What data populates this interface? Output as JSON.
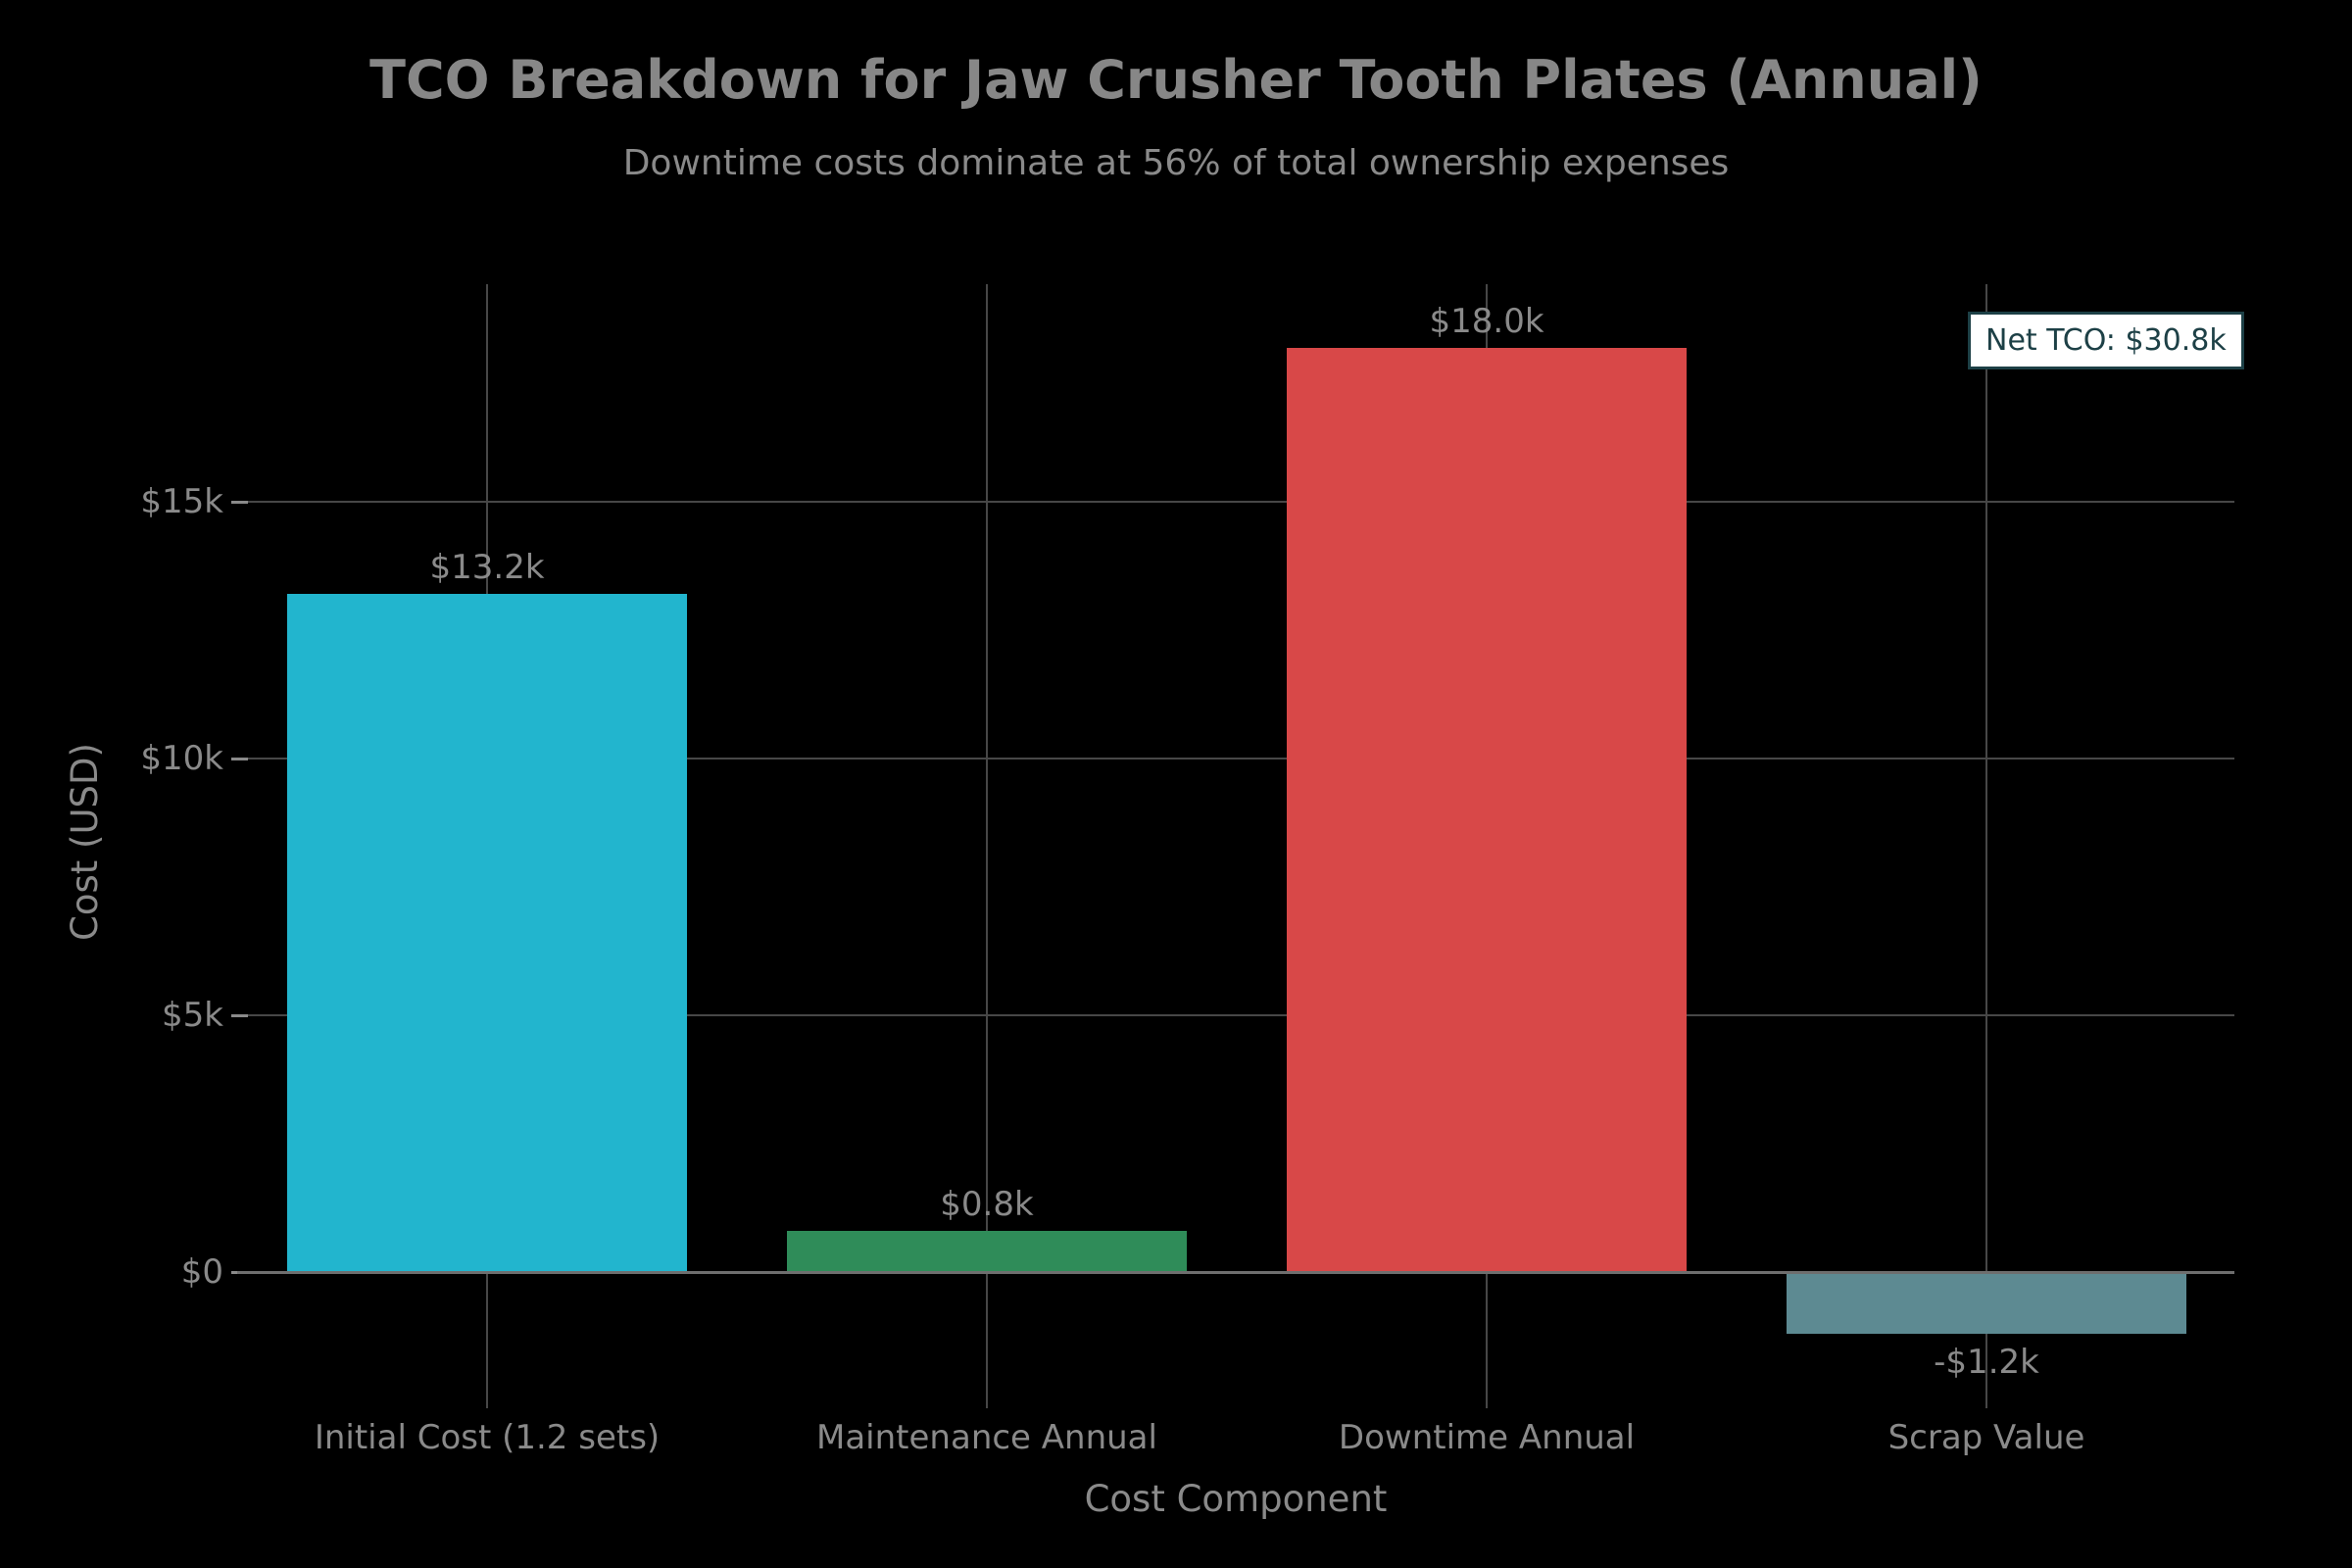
{
  "figure": {
    "title": "TCO Breakdown for Jaw Crusher Tooth Plates (Annual)",
    "subtitle": "Downtime costs dominate at 56% of total ownership expenses",
    "background_color": "#000000",
    "text_color": "#8a8a8a",
    "grid_color": "#474747",
    "zero_line_color": "#6e6e6e"
  },
  "chart_data": {
    "type": "bar",
    "title": "TCO Breakdown for Jaw Crusher Tooth Plates (Annual)",
    "subtitle": "Downtime costs dominate at 56% of total ownership expenses",
    "xlabel": "Cost Component",
    "ylabel": "Cost (USD)",
    "categories": [
      "Initial Cost (1.2 sets)",
      "Maintenance Annual",
      "Downtime Annual",
      "Scrap Value"
    ],
    "values": [
      13200,
      800,
      18000,
      -1200
    ],
    "bar_labels": [
      "$13.2k",
      "$0.8k",
      "$18.0k",
      "-$1.2k"
    ],
    "bar_colors": [
      "#22b5ce",
      "#2f8c59",
      "#d84848",
      "#5d8a92"
    ],
    "yticks": [
      {
        "value": 0,
        "label": "$0"
      },
      {
        "value": 5000,
        "label": "$5k"
      },
      {
        "value": 10000,
        "label": "$10k"
      },
      {
        "value": 15000,
        "label": "$15k"
      }
    ],
    "ylim": [
      -2400,
      19300
    ],
    "grid": true,
    "legend": null,
    "annotation": {
      "text": "Net TCO: $30.8k",
      "text_color": "#1d4046",
      "background": "#ffffff",
      "border_color": "#1d4046"
    }
  }
}
